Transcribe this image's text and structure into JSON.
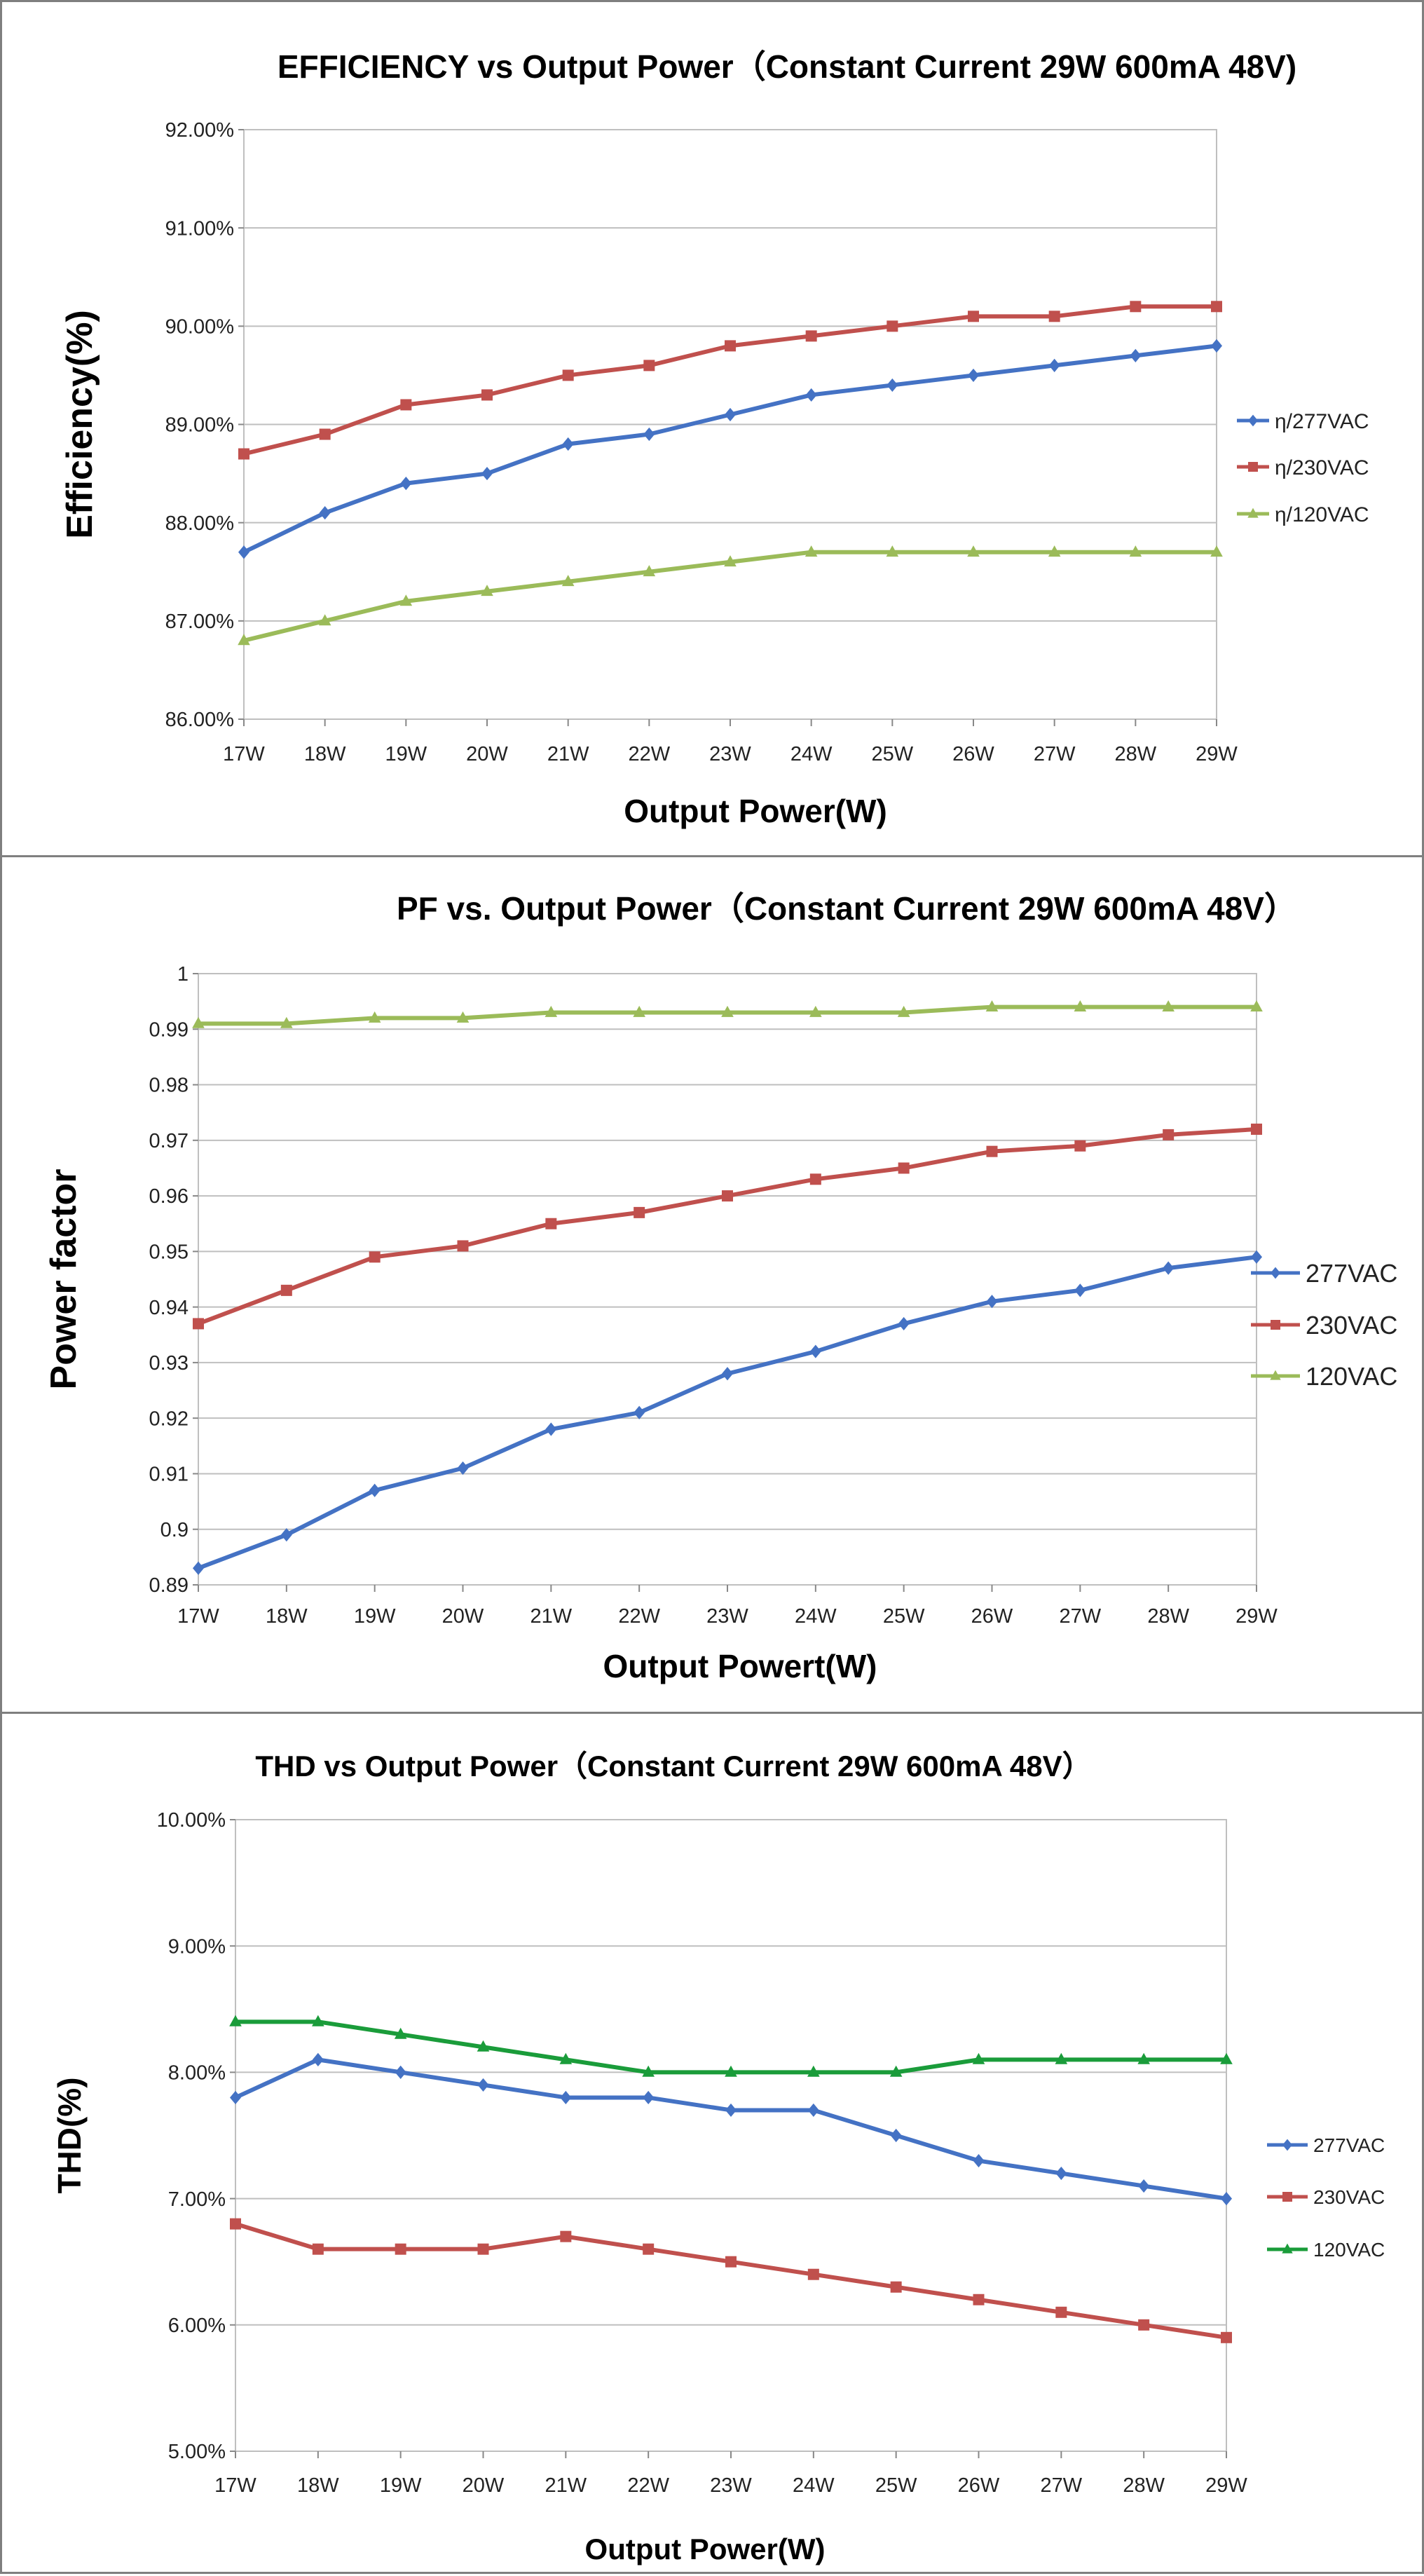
{
  "chart_data": [
    {
      "type": "line",
      "title": "EFFICIENCY vs Output Power（Constant Current 29W 600mA 48V)",
      "xlabel": "Output Power(W)",
      "ylabel": "Efficiency(%)",
      "categories": [
        "17W",
        "18W",
        "19W",
        "20W",
        "21W",
        "22W",
        "23W",
        "24W",
        "25W",
        "26W",
        "27W",
        "28W",
        "29W"
      ],
      "yticks": [
        "86.00%",
        "87.00%",
        "88.00%",
        "89.00%",
        "90.00%",
        "91.00%",
        "92.00%"
      ],
      "ylim": [
        86,
        92
      ],
      "grid": true,
      "legend_position": "right",
      "series": [
        {
          "name": "η/277VAC",
          "color": "#4472c4",
          "marker": "diamond",
          "values": [
            87.7,
            88.1,
            88.4,
            88.5,
            88.8,
            88.9,
            89.1,
            89.3,
            89.4,
            89.5,
            89.6,
            89.7,
            89.8
          ]
        },
        {
          "name": "η/230VAC",
          "color": "#c0504d",
          "marker": "square",
          "values": [
            88.7,
            88.9,
            89.2,
            89.3,
            89.5,
            89.6,
            89.8,
            89.9,
            90.0,
            90.1,
            90.1,
            90.2,
            90.2
          ]
        },
        {
          "name": "η/120VAC",
          "color": "#9bbb59",
          "marker": "triangle",
          "values": [
            86.8,
            87.0,
            87.2,
            87.3,
            87.4,
            87.5,
            87.6,
            87.7,
            87.7,
            87.7,
            87.7,
            87.7,
            87.7
          ]
        }
      ]
    },
    {
      "type": "line",
      "title": "PF vs. Output Power（Constant Current 29W 600mA 48V）",
      "xlabel": "Output Powert(W)",
      "ylabel": "Power factor",
      "categories": [
        "17W",
        "18W",
        "19W",
        "20W",
        "21W",
        "22W",
        "23W",
        "24W",
        "25W",
        "26W",
        "27W",
        "28W",
        "29W"
      ],
      "yticks": [
        "0.89",
        "0.9",
        "0.91",
        "0.92",
        "0.93",
        "0.94",
        "0.95",
        "0.96",
        "0.97",
        "0.98",
        "0.99",
        "1"
      ],
      "ylim": [
        0.89,
        1.0
      ],
      "grid": true,
      "legend_position": "right",
      "series": [
        {
          "name": "277VAC",
          "color": "#4472c4",
          "marker": "diamond",
          "values": [
            0.893,
            0.899,
            0.907,
            0.911,
            0.918,
            0.921,
            0.928,
            0.932,
            0.937,
            0.941,
            0.943,
            0.947,
            0.949
          ]
        },
        {
          "name": "230VAC",
          "color": "#c0504d",
          "marker": "square",
          "values": [
            0.937,
            0.943,
            0.949,
            0.951,
            0.955,
            0.957,
            0.96,
            0.963,
            0.965,
            0.968,
            0.969,
            0.971,
            0.972
          ]
        },
        {
          "name": "120VAC",
          "color": "#9bbb59",
          "marker": "triangle",
          "values": [
            0.991,
            0.991,
            0.992,
            0.992,
            0.993,
            0.993,
            0.993,
            0.993,
            0.993,
            0.994,
            0.994,
            0.994,
            0.994
          ]
        }
      ]
    },
    {
      "type": "line",
      "title": "THD vs Output Power（Constant Current 29W  600mA 48V）",
      "xlabel": "Output Power(W)",
      "ylabel": "THD(%)",
      "categories": [
        "17W",
        "18W",
        "19W",
        "20W",
        "21W",
        "22W",
        "23W",
        "24W",
        "25W",
        "26W",
        "27W",
        "28W",
        "29W"
      ],
      "yticks": [
        "5.00%",
        "6.00%",
        "7.00%",
        "8.00%",
        "9.00%",
        "10.00%"
      ],
      "ylim": [
        5,
        10
      ],
      "grid": true,
      "legend_position": "right",
      "series": [
        {
          "name": "277VAC",
          "color": "#4472c4",
          "marker": "diamond",
          "values": [
            7.8,
            8.1,
            8.0,
            7.9,
            7.8,
            7.8,
            7.7,
            7.7,
            7.5,
            7.3,
            7.2,
            7.1,
            7.0
          ]
        },
        {
          "name": "230VAC",
          "color": "#c0504d",
          "marker": "square",
          "values": [
            6.8,
            6.6,
            6.6,
            6.6,
            6.7,
            6.6,
            6.5,
            6.4,
            6.3,
            6.2,
            6.1,
            6.0,
            5.9
          ]
        },
        {
          "name": "120VAC",
          "color": "#1a9c3a",
          "marker": "triangle",
          "values": [
            8.4,
            8.4,
            8.3,
            8.2,
            8.1,
            8.0,
            8.0,
            8.0,
            8.0,
            8.1,
            8.1,
            8.1,
            8.1
          ]
        }
      ]
    }
  ]
}
